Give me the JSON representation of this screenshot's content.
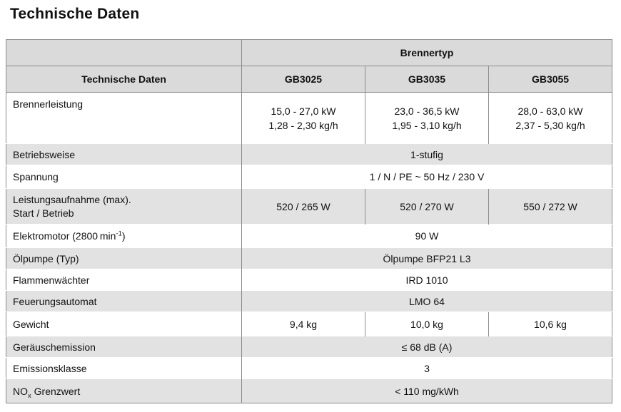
{
  "page_title": "Technische Daten",
  "colors": {
    "page_bg": "#ffffff",
    "text": "#111111",
    "border": "#8c8c8c",
    "header_bg": "#dadada",
    "stripe_bg": "#e2e2e2",
    "row_separator": "#ffffff"
  },
  "table": {
    "group_header": "Brennertyp",
    "corner_header": "Technische Daten",
    "columns": [
      "GB3025",
      "GB3035",
      "GB3055"
    ],
    "rows": [
      {
        "label": "Brennerleistung",
        "values": [
          {
            "l1": "15,0 - 27,0 kW",
            "l2": "1,28 - 2,30 kg/h"
          },
          {
            "l1": "23,0 - 36,5 kW",
            "l2": "1,95 - 3,10 kg/h"
          },
          {
            "l1": "28,0 - 63,0 kW",
            "l2": "2,37 - 5,30 kg/h"
          }
        ]
      },
      {
        "label": "Betriebsweise",
        "value": "1-stufig"
      },
      {
        "label": "Spannung",
        "value": "1 / N / PE ~ 50 Hz / 230 V"
      },
      {
        "label_line1": "Leistungsaufnahme (max).",
        "label_line2": "Start / Betrieb",
        "values": [
          "520 / 265 W",
          "520 / 270 W",
          "550 / 272 W"
        ]
      },
      {
        "label_pre": "Elektromotor (2800 min",
        "label_sup": "-1",
        "label_post": ")",
        "value": "90 W"
      },
      {
        "label": "Ölpumpe (Typ)",
        "value": "Ölpumpe BFP21 L3"
      },
      {
        "label": "Flammenwächter",
        "value": "IRD 1010"
      },
      {
        "label": "Feuerungsautomat",
        "value": "LMO 64"
      },
      {
        "label": "Gewicht",
        "values": [
          "9,4 kg",
          "10,0 kg",
          "10,6 kg"
        ]
      },
      {
        "label": "Geräuschemission",
        "value": "≤ 68 dB (A)"
      },
      {
        "label": "Emissionsklasse",
        "value": "3"
      },
      {
        "label_pre": "NO",
        "label_sub": "x",
        "label_post": " Grenzwert",
        "value": "< 110 mg/kWh"
      }
    ]
  }
}
